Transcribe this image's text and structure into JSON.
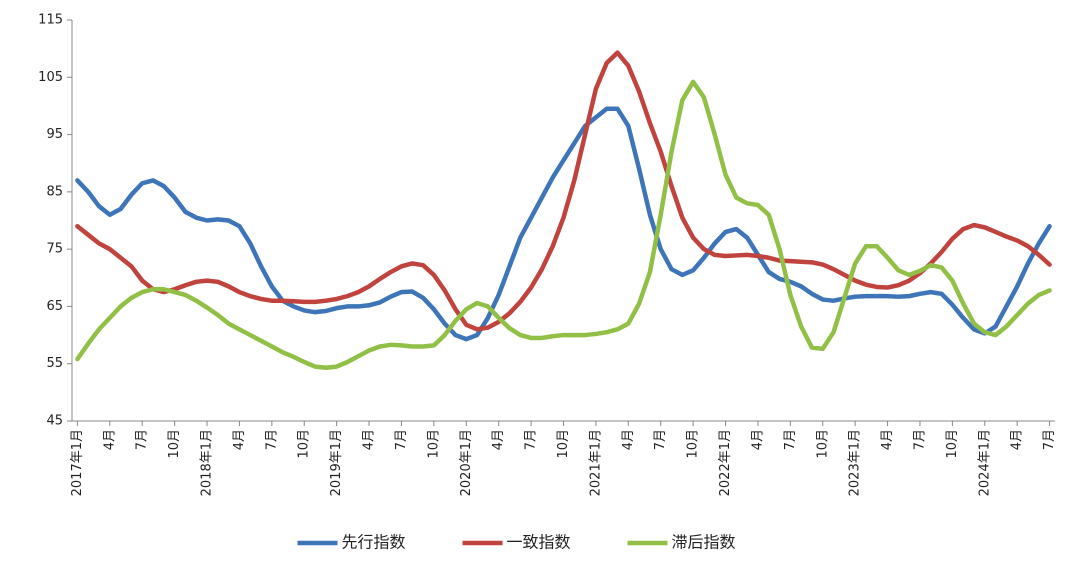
{
  "chart_data": {
    "type": "line",
    "categories": [
      "2017年1月",
      null,
      null,
      "4月",
      null,
      null,
      "7月",
      null,
      null,
      "10月",
      null,
      null,
      "2018年1月",
      null,
      null,
      "4月",
      null,
      null,
      "7月",
      null,
      null,
      "10月",
      null,
      null,
      "2019年1月",
      null,
      null,
      "4月",
      null,
      null,
      "7月",
      null,
      null,
      "10月",
      null,
      null,
      "2020年1月",
      null,
      null,
      "4月",
      null,
      null,
      "7月",
      null,
      null,
      "10月",
      null,
      null,
      "2021年1月",
      null,
      null,
      "4月",
      null,
      null,
      "7月",
      null,
      null,
      "10月",
      null,
      null,
      "2022年1月",
      null,
      null,
      "4月",
      null,
      null,
      "7月",
      null,
      null,
      "10月",
      null,
      null,
      "2023年1月",
      null,
      null,
      "4月",
      null,
      null,
      "7月",
      null,
      null,
      "10月",
      null,
      null,
      "2024年1月",
      null,
      null,
      "4月",
      null,
      null,
      "7月"
    ],
    "series": [
      {
        "name": "先行指数",
        "color": "#3e74b8",
        "values": [
          87,
          85,
          82.5,
          81,
          82,
          84.5,
          86.5,
          87,
          86,
          84,
          81.5,
          80.5,
          80,
          80.2,
          80,
          79,
          76,
          72,
          68.5,
          66,
          65,
          64.3,
          64,
          64.2,
          64.7,
          65,
          65,
          65.2,
          65.7,
          66.7,
          67.5,
          67.6,
          66.5,
          64.5,
          62,
          60,
          59.3,
          60,
          63,
          67,
          72,
          77,
          80.5,
          84,
          87.5,
          90.5,
          93.5,
          96.5,
          98,
          99.5,
          99.5,
          96.5,
          89,
          81,
          75,
          71.5,
          70.5,
          71.3,
          73.5,
          76,
          78,
          78.5,
          77,
          74,
          71,
          69.8,
          69.3,
          68.5,
          67.2,
          66.2,
          66,
          66.4,
          66.7,
          66.8,
          66.8,
          66.8,
          66.7,
          66.8,
          67.2,
          67.5,
          67.2,
          65.3,
          63,
          61,
          60.3,
          61.5,
          65,
          68.5,
          72.5,
          76,
          79
        ]
      },
      {
        "name": "一致指数",
        "color": "#c0433e",
        "values": [
          79,
          77.5,
          76,
          75,
          73.5,
          72,
          69.5,
          68,
          67.5,
          68,
          68.7,
          69.3,
          69.5,
          69.3,
          68.5,
          67.5,
          66.8,
          66.3,
          66,
          66,
          65.9,
          65.8,
          65.8,
          66,
          66.3,
          66.8,
          67.5,
          68.5,
          69.8,
          71,
          72,
          72.5,
          72.2,
          70.5,
          67.8,
          64.5,
          61.8,
          61,
          61.3,
          62.3,
          63.8,
          65.8,
          68.3,
          71.5,
          75.5,
          80.5,
          87,
          95,
          103,
          107.5,
          109.3,
          107,
          102.5,
          97,
          92,
          86,
          80.5,
          77,
          75,
          74,
          73.8,
          73.9,
          74,
          73.8,
          73.5,
          73,
          72.9,
          72.8,
          72.7,
          72.3,
          71.5,
          70.5,
          69.5,
          68.8,
          68.4,
          68.3,
          68.7,
          69.5,
          70.8,
          72.5,
          74.5,
          76.8,
          78.5,
          79.2,
          78.8,
          78,
          77.2,
          76.5,
          75.5,
          74,
          72.3
        ]
      },
      {
        "name": "滞后指数",
        "color": "#92c047",
        "values": [
          55.8,
          58.5,
          61,
          63,
          65,
          66.5,
          67.5,
          68,
          68,
          67.5,
          67,
          66,
          64.8,
          63.5,
          62,
          61,
          60,
          59,
          58,
          57,
          56.2,
          55.3,
          54.5,
          54.3,
          54.5,
          55.3,
          56.3,
          57.3,
          58,
          58.3,
          58.2,
          58,
          58,
          58.2,
          60,
          62.5,
          64.5,
          65.6,
          65,
          63,
          61.2,
          60,
          59.5,
          59.5,
          59.8,
          60,
          60,
          60,
          60.2,
          60.5,
          61,
          62,
          65.5,
          71,
          81,
          92,
          101,
          104.2,
          101.5,
          95,
          88,
          84,
          83,
          82.7,
          81,
          75,
          67,
          61.5,
          57.8,
          57.6,
          60.5,
          66.5,
          72.5,
          75.5,
          75.5,
          73.5,
          71.3,
          70.5,
          71.2,
          72.2,
          71.8,
          69.5,
          65.5,
          62,
          60.5,
          60,
          61.5,
          63.5,
          65.5,
          67,
          67.8
        ]
      }
    ],
    "ylim": [
      45,
      115
    ],
    "yticks": [
      45,
      55,
      65,
      75,
      85,
      95,
      105,
      115
    ],
    "grid": false,
    "legend": "bottom"
  }
}
